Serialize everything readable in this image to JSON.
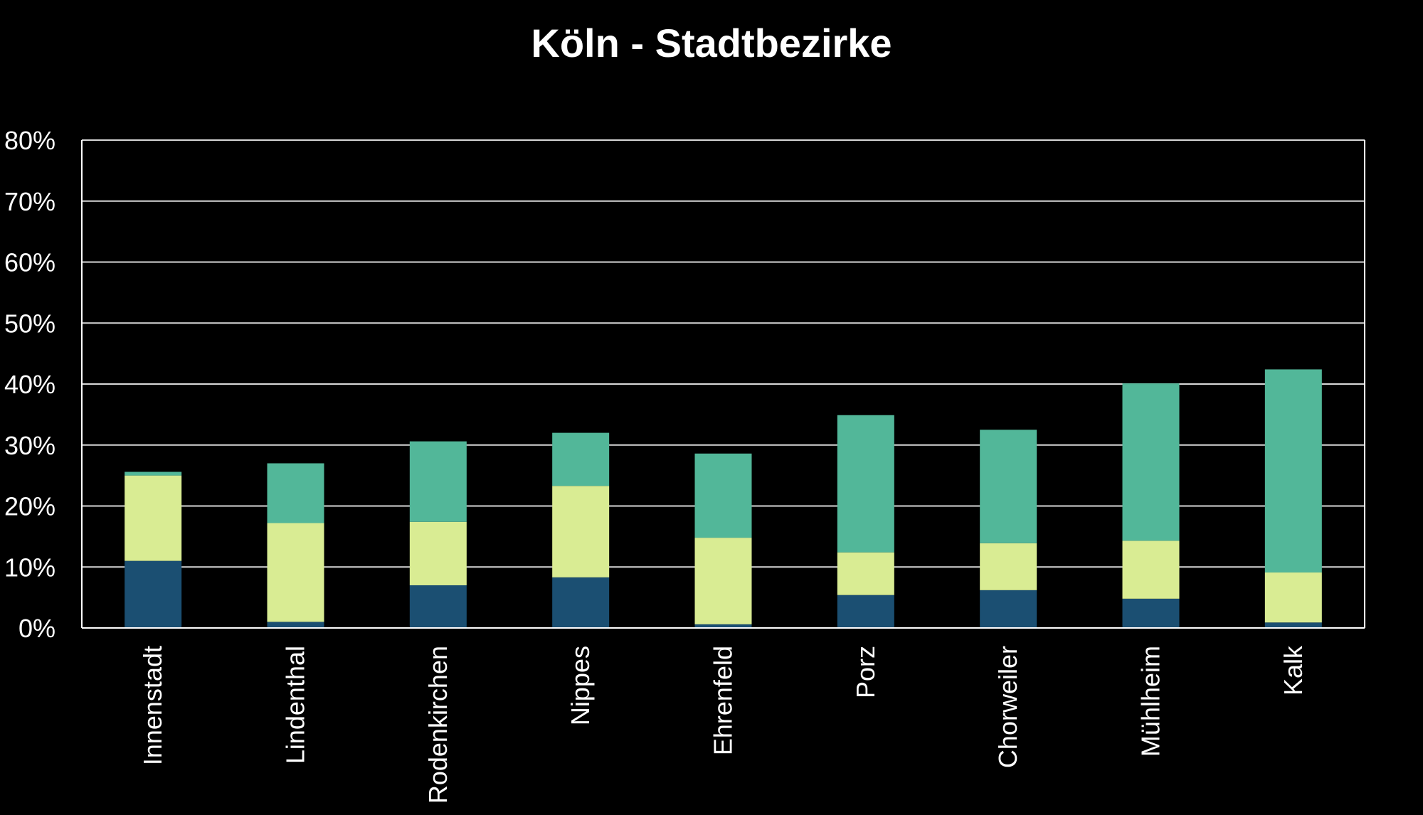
{
  "chart_data": {
    "type": "bar",
    "stacked": true,
    "title": "Köln - Stadtbezirke",
    "categories": [
      "Innenstadt",
      "Lindenthal",
      "Rodenkirchen",
      "Nippes",
      "Ehrenfeld",
      "Porz",
      "Chorweiler",
      "Mühlheim",
      "Kalk"
    ],
    "ylim": [
      0,
      80
    ],
    "yticks": [
      "0%",
      "10%",
      "20%",
      "30%",
      "40%",
      "50%",
      "60%",
      "70%",
      "80%"
    ],
    "grid": true,
    "series": [
      {
        "color": "#1b4f72",
        "values": [
          11,
          1,
          7,
          8.3,
          0.6,
          5.4,
          6.2,
          4.8,
          0.9
        ]
      },
      {
        "color": "#d9ec93",
        "values": [
          14,
          16.2,
          10.4,
          15,
          14.2,
          7,
          7.7,
          9.5,
          8.2
        ]
      },
      {
        "color": "#52b799",
        "values": [
          0.6,
          9.8,
          13.2,
          8.7,
          13.8,
          22.5,
          18.6,
          25.8,
          33.3
        ]
      }
    ]
  }
}
